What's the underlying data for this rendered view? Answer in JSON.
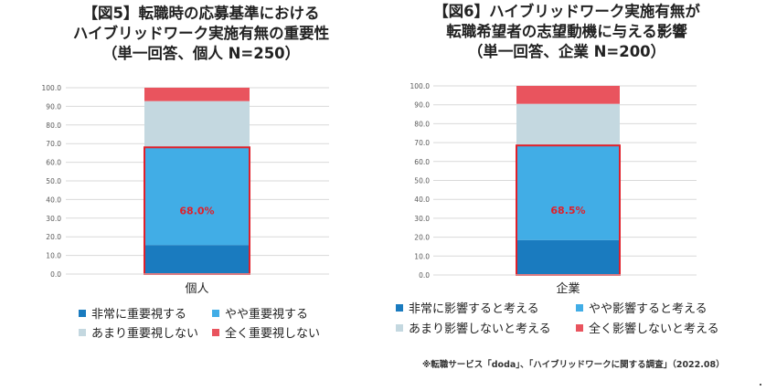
{
  "charts": [
    {
      "title_lines": [
        "【図5】転職時の応募基準における",
        "ハイブリッドワーク実施有無の重要性",
        "（単一回答、個人 N=250）"
      ],
      "category": "個人",
      "highlight_label": "68.0%",
      "legend": [
        "非常に重要視する",
        "やや重要視する",
        "あまり重要視しない",
        "全く重要視しない"
      ]
    },
    {
      "title_lines": [
        "【図6】ハイブリッドワーク実施有無が",
        "転職希望者の志望動機に与える影響",
        "（単一回答、企業 N=200）"
      ],
      "category": "企業",
      "highlight_label": "68.5%",
      "legend": [
        "非常に影響すると考える",
        "やや影響すると考える",
        "あまり影響しないと考える",
        "全く影響しないと考える"
      ]
    }
  ],
  "colors": {
    "seg1": "#1a7bbf",
    "seg2": "#41ade6",
    "seg3": "#c4d8e0",
    "seg4": "#e9545e",
    "highlight": "#e0202a",
    "grid": "#d9d9d9",
    "axis": "#595959"
  },
  "chart_data": [
    {
      "type": "bar",
      "stacked": true,
      "categories": [
        "個人"
      ],
      "series": [
        {
          "name": "非常に重要視する",
          "values": [
            15.6
          ]
        },
        {
          "name": "やや重要視する",
          "values": [
            52.4
          ]
        },
        {
          "name": "あまり重要視しない",
          "values": [
            24.8
          ]
        },
        {
          "name": "全く重要視しない",
          "values": [
            7.2
          ]
        }
      ],
      "ylim": [
        0,
        100
      ],
      "yticks": [
        "0.0",
        "10.0",
        "20.0",
        "30.0",
        "40.0",
        "50.0",
        "60.0",
        "70.0",
        "80.0",
        "90.0",
        "100.0"
      ],
      "annotation": "68.0%",
      "highlight_range": [
        0,
        68.0
      ]
    },
    {
      "type": "bar",
      "stacked": true,
      "categories": [
        "企業"
      ],
      "series": [
        {
          "name": "非常に影響すると考える",
          "values": [
            18.5
          ]
        },
        {
          "name": "やや影響すると考える",
          "values": [
            50.0
          ]
        },
        {
          "name": "あまり影響しないと考える",
          "values": [
            22.0
          ]
        },
        {
          "name": "全く影響しないと考える",
          "values": [
            9.5
          ]
        }
      ],
      "ylim": [
        0,
        100
      ],
      "yticks": [
        "0.0",
        "10.0",
        "20.0",
        "30.0",
        "40.0",
        "50.0",
        "60.0",
        "70.0",
        "80.0",
        "90.0",
        "100.0"
      ],
      "annotation": "68.5%",
      "highlight_range": [
        0,
        68.5
      ]
    }
  ],
  "source": "※転職サービス「doda」、「ハイブリッドワークに関する調査」（2022.08）"
}
